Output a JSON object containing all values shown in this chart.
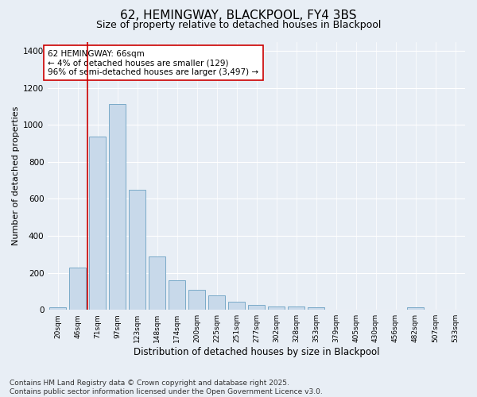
{
  "title": "62, HEMINGWAY, BLACKPOOL, FY4 3BS",
  "subtitle": "Size of property relative to detached houses in Blackpool",
  "xlabel": "Distribution of detached houses by size in Blackpool",
  "ylabel": "Number of detached properties",
  "bar_color": "#c8d9ea",
  "bar_edge_color": "#7aaac8",
  "background_color": "#e8eef5",
  "fig_background_color": "#e8eef5",
  "annotation_text": "62 HEMINGWAY: 66sqm\n← 4% of detached houses are smaller (129)\n96% of semi-detached houses are larger (3,497) →",
  "vline_color": "#cc0000",
  "categories": [
    "20sqm",
    "46sqm",
    "71sqm",
    "97sqm",
    "123sqm",
    "148sqm",
    "174sqm",
    "200sqm",
    "225sqm",
    "251sqm",
    "277sqm",
    "302sqm",
    "328sqm",
    "353sqm",
    "379sqm",
    "405sqm",
    "430sqm",
    "456sqm",
    "482sqm",
    "507sqm",
    "533sqm"
  ],
  "values": [
    15,
    230,
    935,
    1115,
    650,
    290,
    158,
    108,
    78,
    45,
    25,
    20,
    18,
    15,
    0,
    0,
    0,
    0,
    15,
    0,
    0
  ],
  "ylim": [
    0,
    1450
  ],
  "yticks": [
    0,
    200,
    400,
    600,
    800,
    1000,
    1200,
    1400
  ],
  "footnote": "Contains HM Land Registry data © Crown copyright and database right 2025.\nContains public sector information licensed under the Open Government Licence v3.0.",
  "title_fontsize": 11,
  "subtitle_fontsize": 9,
  "annotation_fontsize": 7.5,
  "footnote_fontsize": 6.5,
  "ylabel_fontsize": 8,
  "xlabel_fontsize": 8.5
}
